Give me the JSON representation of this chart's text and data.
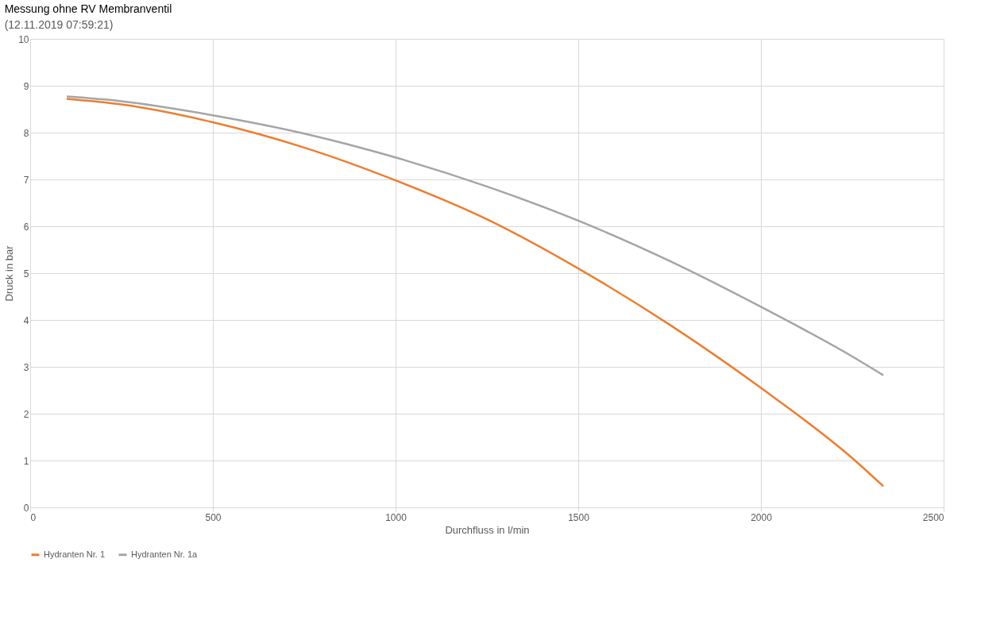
{
  "chart_data": {
    "type": "line",
    "title": "Messung ohne RV Membranventil",
    "subtitle": "(12.11.2019 07:59:21)",
    "xlabel": "Durchfluss in l/min",
    "ylabel": "Druck in bar",
    "x": [
      100,
      250,
      500,
      750,
      1000,
      1250,
      1500,
      1750,
      2000,
      2250,
      2335
    ],
    "series": [
      {
        "name": "Hydranten Nr. 1",
        "color": "#ed7d31",
        "values": [
          8.72,
          8.6,
          8.22,
          7.68,
          6.98,
          6.15,
          5.1,
          3.9,
          2.55,
          1.05,
          0.45
        ]
      },
      {
        "name": "Hydranten Nr. 1a",
        "color": "#a5a5a5",
        "values": [
          8.77,
          8.67,
          8.37,
          7.98,
          7.47,
          6.85,
          6.12,
          5.26,
          4.28,
          3.22,
          2.82
        ]
      }
    ],
    "xlim": [
      0,
      2500
    ],
    "xticks": [
      0,
      500,
      1000,
      1500,
      2000,
      2500
    ],
    "ylim": [
      0,
      10
    ],
    "yticks": [
      0,
      1,
      2,
      3,
      4,
      5,
      6,
      7,
      8,
      9,
      10
    ],
    "grid": true,
    "legend": "bottom",
    "marker": "none",
    "line_style": "solid"
  }
}
